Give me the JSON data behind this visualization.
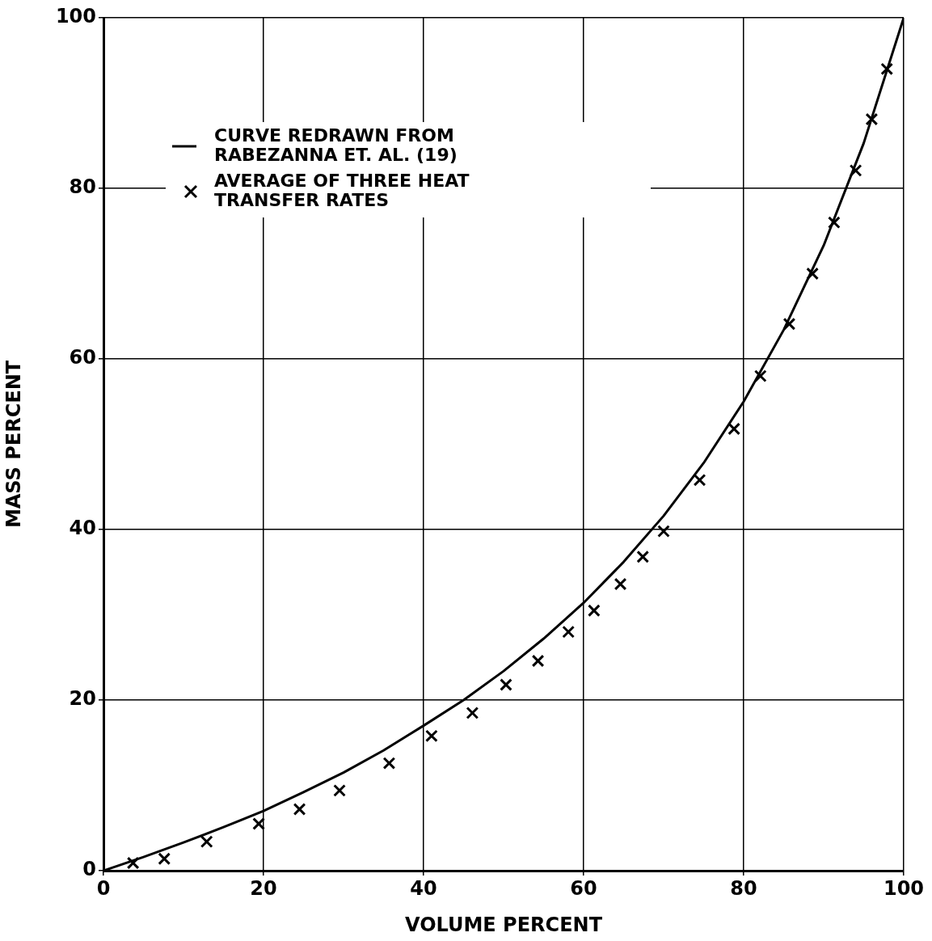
{
  "chart_data": {
    "type": "line",
    "xlabel": "VOLUME PERCENT",
    "ylabel": "MASS PERCENT",
    "xlim": [
      0,
      100
    ],
    "ylim": [
      0,
      100
    ],
    "xticks": [
      0,
      20,
      40,
      60,
      80,
      100
    ],
    "yticks": [
      0,
      20,
      40,
      60,
      80,
      100
    ],
    "grid": true,
    "legend": "top left",
    "line_style": "solid",
    "series": [
      {
        "name": "CURVE REDRAWN FROM RABEZANNA ET. AL. (19)",
        "marker": "none",
        "color": "#000000",
        "x": [
          0,
          5,
          10,
          15,
          20,
          25,
          30,
          35,
          40,
          45,
          50,
          55,
          60,
          65,
          70,
          75,
          80,
          85,
          90,
          95,
          100
        ],
        "values": [
          0,
          1.6,
          3.3,
          5.1,
          7.0,
          9.2,
          11.5,
          14.1,
          17.0,
          20.0,
          23.4,
          27.2,
          31.4,
          36.2,
          41.6,
          47.8,
          55.0,
          63.4,
          73.3,
          85.3,
          100
        ]
      },
      {
        "name": "AVERAGE OF THREE HEAT TRANSFER RATES",
        "type": "scatter",
        "marker": "cross",
        "color": "#000000",
        "x": [
          3.7,
          7.6,
          12.9,
          19.4,
          24.5,
          29.5,
          35.7,
          41.0,
          46.1,
          50.3,
          54.3,
          58.1,
          61.3,
          64.6,
          67.4,
          70.0,
          74.5,
          78.8,
          82.1,
          85.7,
          88.6,
          91.3,
          94.0,
          96.0,
          97.9
        ],
        "values": [
          0.9,
          1.4,
          3.4,
          5.5,
          7.2,
          9.4,
          12.6,
          15.8,
          18.5,
          21.8,
          24.6,
          28.0,
          30.5,
          33.6,
          36.8,
          39.8,
          45.8,
          51.8,
          58.0,
          64.1,
          70.0,
          76.0,
          82.1,
          88.1,
          94.0
        ]
      }
    ]
  }
}
